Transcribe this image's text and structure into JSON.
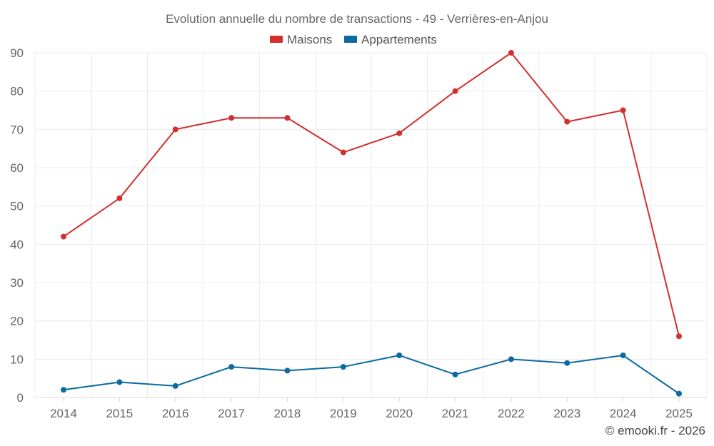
{
  "chart_data": {
    "type": "line",
    "title": "Evolution annuelle du nombre de transactions - 49 - Verrières-en-Anjou",
    "categories": [
      "2014",
      "2015",
      "2016",
      "2017",
      "2018",
      "2019",
      "2020",
      "2021",
      "2022",
      "2023",
      "2024",
      "2025"
    ],
    "series": [
      {
        "name": "Maisons",
        "color": "#d32f2f",
        "values": [
          42,
          52,
          70,
          73,
          73,
          64,
          69,
          80,
          90,
          72,
          75,
          16
        ]
      },
      {
        "name": "Appartements",
        "color": "#0a6aa1",
        "values": [
          2,
          4,
          3,
          8,
          7,
          8,
          11,
          6,
          10,
          9,
          11,
          1
        ]
      }
    ],
    "ylim": [
      0,
      90
    ],
    "yticks": [
      0,
      10,
      20,
      30,
      40,
      50,
      60,
      70,
      80,
      90
    ],
    "grid": true,
    "legend": "top-center",
    "xlabel": "",
    "ylabel": ""
  },
  "credit": "© emooki.fr - 2026"
}
